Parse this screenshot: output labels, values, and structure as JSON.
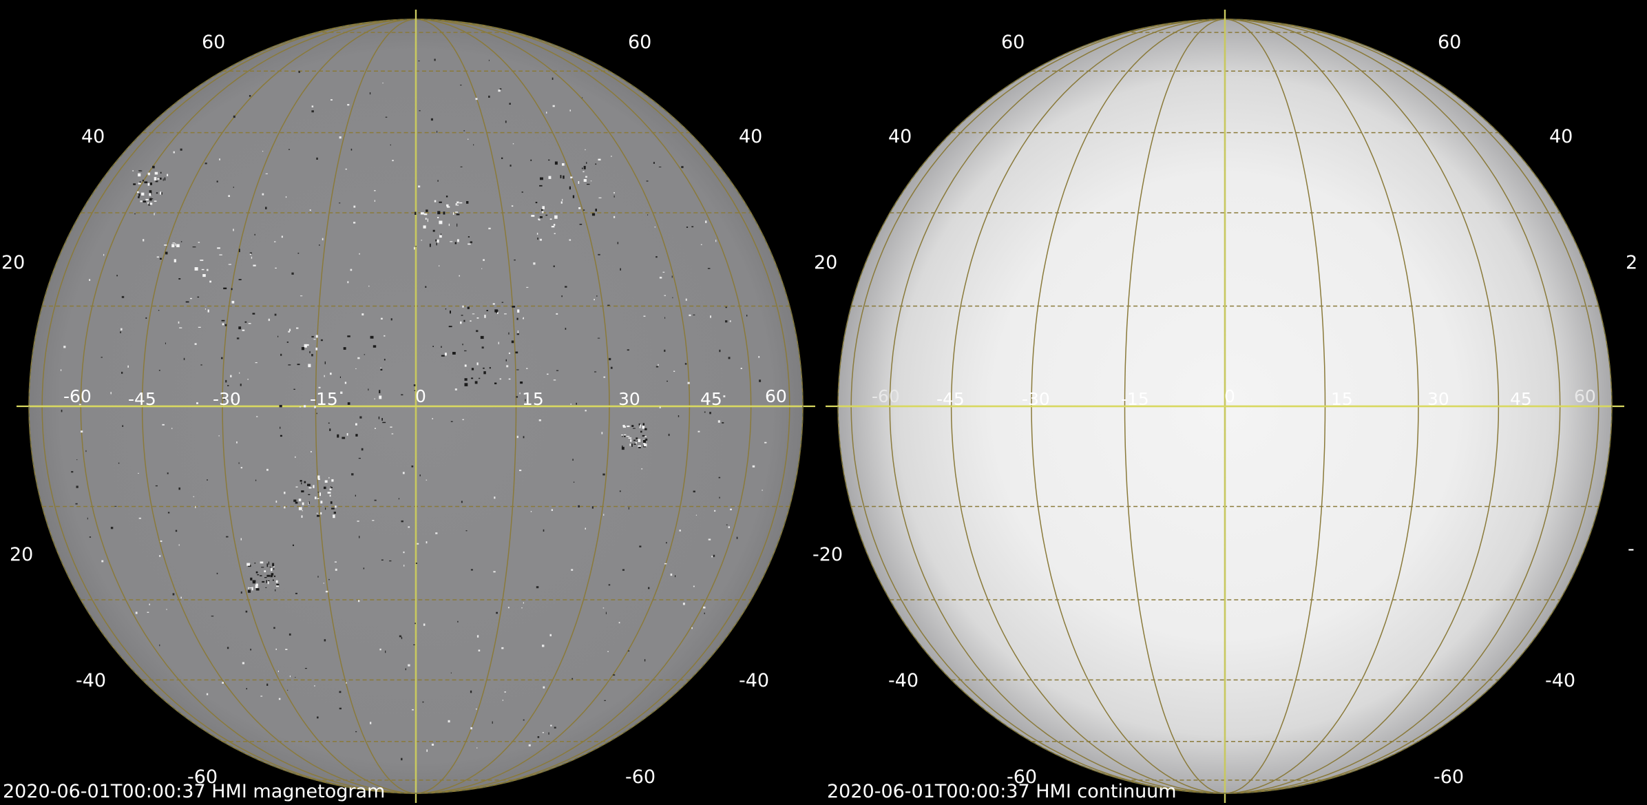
{
  "panels": [
    {
      "id": "magnetogram",
      "caption": "2020-06-01T00:00:37 HMI magnetogram",
      "disk_color": "#8a8a8c",
      "limb_color": "#828284",
      "latitude_labels": [
        "60",
        "40",
        "20",
        "-20",
        "-40",
        "-60"
      ],
      "longitude_labels": [
        "-60",
        "-45",
        "-30",
        "-15",
        "0",
        "15",
        "30",
        "45",
        "60"
      ],
      "left_latitude_labels": [
        "60",
        "40",
        "20",
        "20",
        "-40",
        "-60"
      ],
      "right_latitude_labels": [
        "60",
        "40",
        "",
        "",
        "-40",
        "-60"
      ]
    },
    {
      "id": "continuum",
      "caption": "2020-06-01T00:00:37 HMI continuum",
      "disk_color": "#f2f2f2",
      "limb_color": "#a8a8aa",
      "latitude_labels": [
        "60",
        "40",
        "20",
        "-20",
        "-40",
        "-60"
      ],
      "longitude_labels": [
        "-60",
        "-45",
        "-30",
        "-15",
        "0",
        "15",
        "30",
        "45",
        "60"
      ],
      "left_latitude_labels": [
        "60",
        "40",
        "20",
        "-20",
        "-40",
        "-60"
      ],
      "right_latitude_labels": [
        "60",
        "40",
        "2",
        "-",
        "-40",
        "-60"
      ]
    }
  ],
  "grid_colors": {
    "meridian": "#c8c860",
    "grid_line": "#8a7a3a",
    "equator": "#d8d860",
    "equator_dash": "#c04040"
  }
}
